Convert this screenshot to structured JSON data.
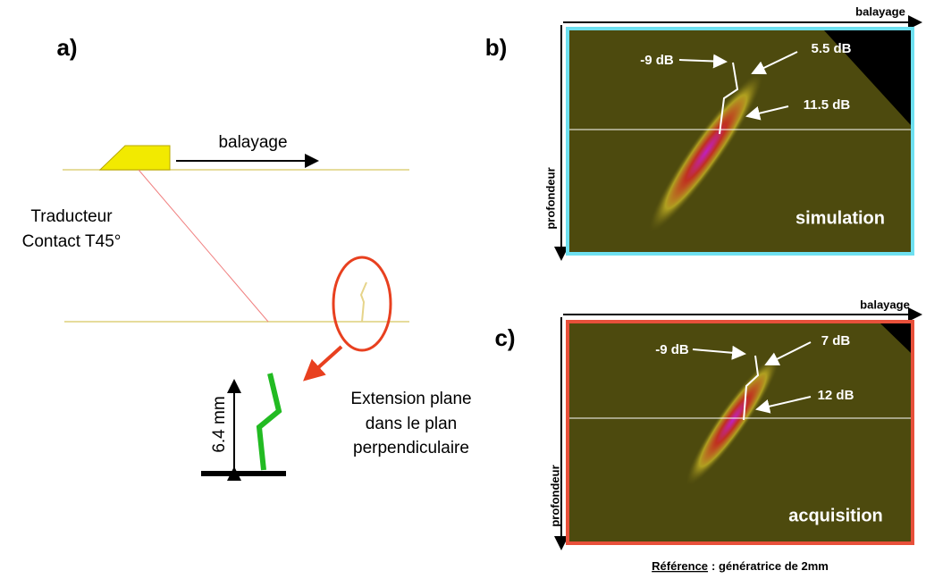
{
  "panels": {
    "a": {
      "label": "a)",
      "scan_label": "balayage",
      "transducer": [
        "Traducteur",
        "Contact T45°"
      ],
      "extension": [
        "Extension plane",
        "dans le plan",
        "perpendiculaire"
      ],
      "height": "6.4 mm"
    },
    "b": {
      "label": "b)",
      "x_axis": "balayage",
      "y_axis": "profondeur",
      "annotations": [
        "-9 dB",
        "5.5 dB",
        "11.5 dB"
      ],
      "caption": "simulation"
    },
    "c": {
      "label": "c)",
      "x_axis": "balayage",
      "y_axis": "profondeur",
      "annotations": [
        "-9 dB",
        "7 dB",
        "12 dB"
      ],
      "caption": "acquisition"
    }
  },
  "footer": {
    "reference": "Référence",
    "text": ": génératrice de 2mm"
  }
}
